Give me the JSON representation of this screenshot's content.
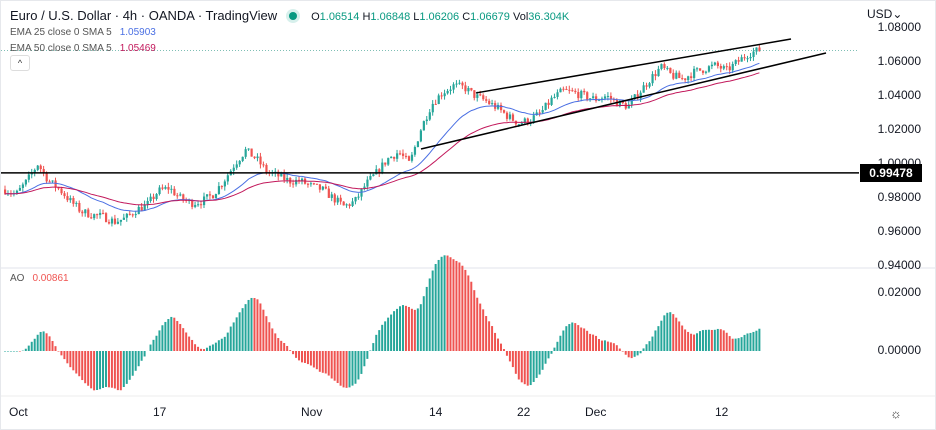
{
  "header": {
    "title": "Euro / U.S. Dollar · 4h · OANDA · TradingView",
    "o_label": "O",
    "o": "1.06514",
    "h_label": "H",
    "h": "1.06848",
    "l_label": "L",
    "l": "1.06206",
    "c_label": "C",
    "c": "1.06679",
    "vol_label": "Vol",
    "vol": "36.304K",
    "status_color": "#089981"
  },
  "indicators": [
    {
      "label": "EMA 25 close 0 SMA 5",
      "value": "1.05903",
      "color": "#4a6fe3"
    },
    {
      "label": "EMA 50 close 0 SMA 5",
      "value": "1.05469",
      "color": "#c2185b"
    }
  ],
  "collapse_icon": "chevron-up-icon",
  "ao": {
    "label": "AO",
    "value": "0.00861",
    "up_color": "#26a69a",
    "down_color": "#ef5350"
  },
  "price_axis": {
    "currency": "USD",
    "ticks": [
      "1.08000",
      "1.06000",
      "1.04000",
      "1.02000",
      "1.00000",
      "0.98000",
      "0.96000",
      "0.94000"
    ],
    "ao_ticks": [
      "0.02000",
      "0.00000"
    ],
    "last_label": "0.99478"
  },
  "time_axis": {
    "ticks": [
      "Oct",
      "17",
      "Nov",
      "14",
      "22",
      "Dec",
      "12"
    ]
  },
  "settings_icon": "gear-icon",
  "chart_data": {
    "type": "candlestick",
    "symbol": "EURUSD",
    "interval": "4h",
    "ylim": [
      0.94,
      1.08
    ],
    "ao_ylim": [
      -0.01,
      0.025
    ],
    "close_samples": [
      0.985,
      0.982,
      0.99,
      1.0,
      0.99,
      0.985,
      0.978,
      0.972,
      0.97,
      0.969,
      0.966,
      0.968,
      0.973,
      0.976,
      0.984,
      0.986,
      0.98,
      0.977,
      0.978,
      0.982,
      0.99,
      1.0,
      1.008,
      1.003,
      0.995,
      0.993,
      0.99,
      0.99,
      0.987,
      0.985,
      0.98,
      0.975,
      0.978,
      0.988,
      0.995,
      1.003,
      1.007,
      1.0,
      1.02,
      1.035,
      1.042,
      1.046,
      1.045,
      1.04,
      1.037,
      1.033,
      1.028,
      1.024,
      1.026,
      1.03,
      1.038,
      1.043,
      1.042,
      1.04,
      1.038,
      1.04,
      1.036,
      1.034,
      1.042,
      1.05,
      1.057,
      1.052,
      1.05,
      1.054,
      1.056,
      1.058,
      1.055,
      1.06,
      1.065,
      1.067
    ],
    "horizontal_level": 0.99478,
    "current_price": 1.06679,
    "wedge_upper": [
      1.0418,
      1.0735
    ],
    "wedge_lower": [
      1.0088,
      1.0653
    ],
    "ema_periods": [
      25,
      50
    ]
  }
}
